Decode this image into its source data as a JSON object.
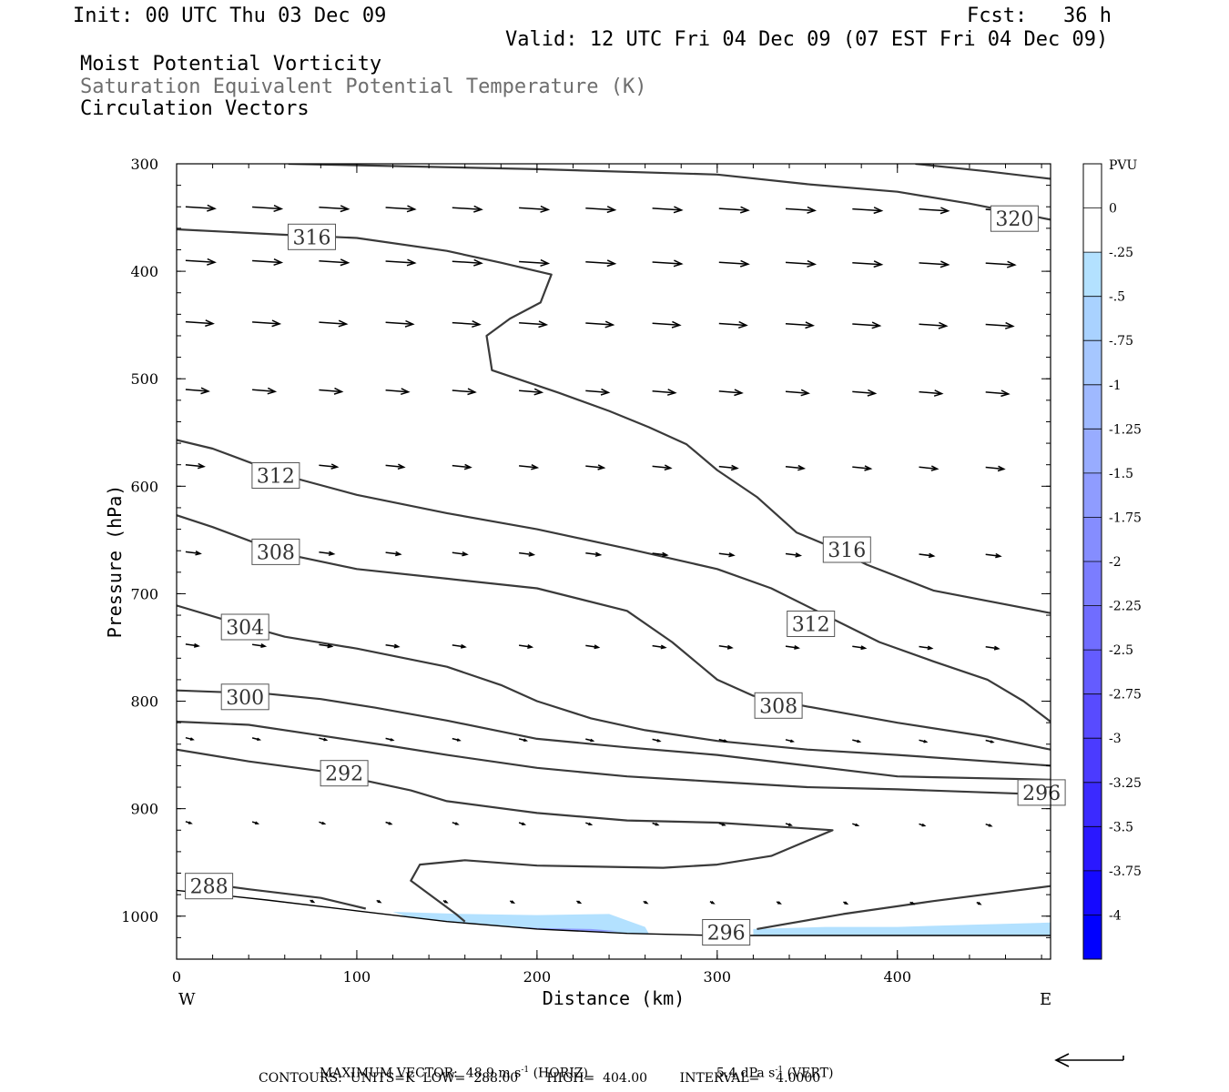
{
  "header": {
    "init": "Init: 00 UTC Thu 03 Dec 09",
    "fcst": "Fcst:   36 h",
    "valid": "Valid: 12 UTC Fri 04 Dec 09 (07 EST Fri 04 Dec 09)",
    "field1": "Moist Potential Vorticity",
    "field2": "Saturation Equivalent Potential Temperature (K)",
    "field3": "Circulation Vectors"
  },
  "footer": {
    "maxvec_label": "MAXIMUM VECTOR:",
    "horiz_value": "48.9",
    "horiz_unit": "m s",
    "horiz_tag": "(HORIZ)",
    "vert_value": "5.4",
    "vert_unit": "dPa s",
    "vert_tag": "(VERT)",
    "exponent": "-1",
    "contours": "CONTOURS:  UNITS=K  LOW=  288.00       HIGH=  404.00        INTERVAL=    4.0000"
  },
  "colors": {
    "contour": "#3a3a3a",
    "vector": "#000000",
    "mpv_light": "#b3e1ff",
    "mpv_mid": "#8f9cff",
    "mpv_dark": "#0000ff"
  },
  "chart_data": {
    "type": "cross-section",
    "xlabel": "Distance (km)",
    "ylabel": "Pressure (hPa)",
    "xlim": [
      0,
      485
    ],
    "ylim": [
      300,
      1040
    ],
    "x_ticks": [
      0,
      100,
      200,
      300,
      400
    ],
    "y_ticks": [
      300,
      400,
      500,
      600,
      700,
      800,
      900,
      1000
    ],
    "x_end_labels": {
      "left": "W",
      "right": "E"
    },
    "contours": [
      {
        "level": "316",
        "points": [
          [
            0,
            361
          ],
          [
            60,
            366
          ],
          [
            100,
            369
          ],
          [
            150,
            381
          ],
          [
            180,
            392
          ],
          [
            208,
            403
          ],
          [
            202,
            429
          ],
          [
            185,
            444
          ],
          [
            172,
            460
          ],
          [
            175,
            492
          ],
          [
            212,
            513
          ],
          [
            240,
            530
          ],
          [
            262,
            545
          ],
          [
            283,
            561
          ],
          [
            300,
            585
          ],
          [
            322,
            610
          ],
          [
            344,
            643
          ],
          [
            364,
            657
          ],
          [
            383,
            673
          ],
          [
            420,
            697
          ],
          [
            485,
            718
          ]
        ]
      },
      {
        "level": "320",
        "points": [
          [
            62,
            300
          ],
          [
            200,
            305
          ],
          [
            300,
            310
          ],
          [
            350,
            319
          ],
          [
            400,
            326
          ],
          [
            440,
            337
          ],
          [
            485,
            352
          ]
        ]
      },
      {
        "level": "320",
        "points": [
          [
            410,
            300
          ],
          [
            450,
            307
          ],
          [
            485,
            314
          ]
        ]
      },
      {
        "level": "312",
        "points": [
          [
            0,
            557
          ],
          [
            20,
            565
          ],
          [
            60,
            590
          ],
          [
            100,
            608
          ],
          [
            150,
            625
          ],
          [
            200,
            640
          ],
          [
            250,
            658
          ],
          [
            300,
            677
          ],
          [
            330,
            695
          ],
          [
            360,
            720
          ],
          [
            390,
            745
          ],
          [
            420,
            763
          ],
          [
            450,
            780
          ],
          [
            470,
            800
          ],
          [
            485,
            819
          ]
        ]
      },
      {
        "level": "308",
        "points": [
          [
            0,
            627
          ],
          [
            20,
            638
          ],
          [
            60,
            663
          ],
          [
            100,
            677
          ],
          [
            150,
            686
          ],
          [
            200,
            695
          ],
          [
            250,
            716
          ],
          [
            275,
            745
          ],
          [
            300,
            780
          ],
          [
            320,
            795
          ],
          [
            350,
            805
          ],
          [
            400,
            820
          ],
          [
            450,
            833
          ],
          [
            485,
            845
          ]
        ]
      },
      {
        "level": "304",
        "points": [
          [
            0,
            711
          ],
          [
            30,
            726
          ],
          [
            60,
            740
          ],
          [
            100,
            751
          ],
          [
            150,
            768
          ],
          [
            180,
            785
          ],
          [
            200,
            800
          ],
          [
            230,
            816
          ],
          [
            260,
            827
          ],
          [
            300,
            837
          ],
          [
            350,
            845
          ],
          [
            400,
            850
          ],
          [
            485,
            860
          ]
        ]
      },
      {
        "level": "300",
        "points": [
          [
            0,
            790
          ],
          [
            50,
            793
          ],
          [
            80,
            798
          ],
          [
            110,
            806
          ],
          [
            150,
            818
          ],
          [
            200,
            835
          ],
          [
            250,
            843
          ],
          [
            300,
            850
          ],
          [
            350,
            860
          ],
          [
            400,
            870
          ],
          [
            485,
            873
          ]
        ]
      },
      {
        "level": "296",
        "points": [
          [
            0,
            819
          ],
          [
            40,
            822
          ],
          [
            80,
            832
          ],
          [
            120,
            842
          ],
          [
            150,
            850
          ],
          [
            200,
            862
          ],
          [
            250,
            870
          ],
          [
            300,
            875
          ],
          [
            350,
            880
          ],
          [
            400,
            882
          ],
          [
            485,
            887
          ]
        ]
      },
      {
        "level": "292",
        "points": [
          [
            0,
            845
          ],
          [
            40,
            856
          ],
          [
            80,
            865
          ],
          [
            130,
            883
          ],
          [
            150,
            893
          ],
          [
            200,
            904
          ],
          [
            250,
            911
          ],
          [
            300,
            913
          ],
          [
            364,
            920
          ],
          [
            330,
            944
          ],
          [
            300,
            952
          ],
          [
            270,
            955
          ],
          [
            200,
            953
          ],
          [
            160,
            948
          ],
          [
            135,
            952
          ],
          [
            130,
            967
          ],
          [
            155,
            998
          ],
          [
            160,
            1005
          ]
        ]
      },
      {
        "level": "288",
        "points": [
          [
            5,
            967
          ],
          [
            40,
            975
          ],
          [
            80,
            983
          ],
          [
            105,
            993
          ]
        ]
      },
      {
        "level": "296",
        "points": [
          [
            322,
            1012
          ],
          [
            370,
            998
          ],
          [
            420,
            986
          ],
          [
            485,
            972
          ]
        ]
      }
    ],
    "contour_labels": [
      {
        "text": "316",
        "x": 75,
        "p": 368
      },
      {
        "text": "320",
        "x": 465,
        "p": 351
      },
      {
        "text": "312",
        "x": 55,
        "p": 590
      },
      {
        "text": "308",
        "x": 55,
        "p": 661
      },
      {
        "text": "304",
        "x": 38,
        "p": 731
      },
      {
        "text": "300",
        "x": 38,
        "p": 796
      },
      {
        "text": "292",
        "x": 93,
        "p": 867
      },
      {
        "text": "288",
        "x": 18,
        "p": 972
      },
      {
        "text": "316",
        "x": 372,
        "p": 659
      },
      {
        "text": "312",
        "x": 352,
        "p": 728
      },
      {
        "text": "308",
        "x": 334,
        "p": 804
      },
      {
        "text": "296",
        "x": 480,
        "p": 885
      },
      {
        "text": "296",
        "x": 305,
        "p": 1015
      }
    ],
    "vector_rows": [
      {
        "p": 340,
        "x0": 5,
        "dx": 37,
        "n": 13,
        "len": 32,
        "dp": 2
      },
      {
        "p": 390,
        "x0": 5,
        "dx": 37,
        "n": 13,
        "len": 32,
        "dp": 2
      },
      {
        "p": 447,
        "x0": 5,
        "dx": 37,
        "n": 13,
        "len": 30,
        "dp": 2
      },
      {
        "p": 510,
        "x0": 5,
        "dx": 37,
        "n": 13,
        "len": 25,
        "dp": 2
      },
      {
        "p": 580,
        "x0": 5,
        "dx": 37,
        "n": 13,
        "len": 20,
        "dp": 2
      },
      {
        "p": 661,
        "x0": 5,
        "dx": 37,
        "n": 13,
        "len": 16,
        "dp": 2
      },
      {
        "p": 747,
        "x0": 5,
        "dx": 37,
        "n": 13,
        "len": 14,
        "dp": 2
      },
      {
        "p": 834,
        "x0": 5,
        "dx": 37,
        "n": 13,
        "len": 8,
        "dp": 2
      },
      {
        "p": 912,
        "x0": 5,
        "dx": 37,
        "n": 13,
        "len": 6,
        "dp": 2
      },
      {
        "p": 985,
        "x0": 37,
        "dx": 37,
        "n": 12,
        "len": 4,
        "dp": 2
      }
    ],
    "vector_clip": [
      [
        0,
        1040
      ],
      [
        0,
        975
      ],
      [
        100,
        995
      ],
      [
        200,
        1008
      ],
      [
        260,
        1015
      ],
      [
        300,
        1018
      ],
      [
        485,
        1018
      ],
      [
        485,
        1040
      ]
    ],
    "terrain": [
      [
        0,
        976
      ],
      [
        50,
        985
      ],
      [
        100,
        995
      ],
      [
        150,
        1005
      ],
      [
        200,
        1012
      ],
      [
        250,
        1016
      ],
      [
        300,
        1018
      ],
      [
        485,
        1018
      ],
      [
        485,
        1040
      ],
      [
        0,
        1040
      ]
    ],
    "mpv_shading": [
      {
        "level": "-0.25",
        "color": "#b3e1ff",
        "points": [
          [
            120,
            996
          ],
          [
            160,
            998
          ],
          [
            200,
            999
          ],
          [
            240,
            998
          ],
          [
            250,
            1004
          ],
          [
            260,
            1010
          ],
          [
            262,
            1016
          ],
          [
            240,
            1016
          ],
          [
            200,
            1013
          ],
          [
            160,
            1009
          ],
          [
            130,
            1002
          ]
        ]
      },
      {
        "level": "-0.5",
        "color": "#8f9cff",
        "points": [
          [
            170,
            1008
          ],
          [
            200,
            1011
          ],
          [
            230,
            1012
          ],
          [
            245,
            1014
          ],
          [
            225,
            1015
          ],
          [
            200,
            1014
          ],
          [
            180,
            1012
          ]
        ]
      },
      {
        "level": "-0.25",
        "color": "#b3e1ff",
        "points": [
          [
            320,
            1012
          ],
          [
            360,
            1010
          ],
          [
            400,
            1010
          ],
          [
            440,
            1008
          ],
          [
            485,
            1006
          ],
          [
            485,
            1018
          ],
          [
            320,
            1018
          ]
        ]
      }
    ],
    "colorbar": {
      "title": "PVU",
      "labels": [
        "0",
        "-.25",
        "-.5",
        "-.75",
        "-1",
        "-1.25",
        "-1.5",
        "-1.75",
        "-2",
        "-2.25",
        "-2.5",
        "-2.75",
        "-3",
        "-3.25",
        "-3.5",
        "-3.75",
        "-4"
      ],
      "colors": [
        "#ffffff",
        "#ffffff",
        "#b3e1ff",
        "#a9d2ff",
        "#a6c7ff",
        "#9fb9ff",
        "#98acff",
        "#8f9cff",
        "#858dff",
        "#7b7dff",
        "#706dff",
        "#645cff",
        "#584bff",
        "#4b3bff",
        "#3b2aff",
        "#2a18ff",
        "#1509ff",
        "#0000ff"
      ]
    }
  }
}
